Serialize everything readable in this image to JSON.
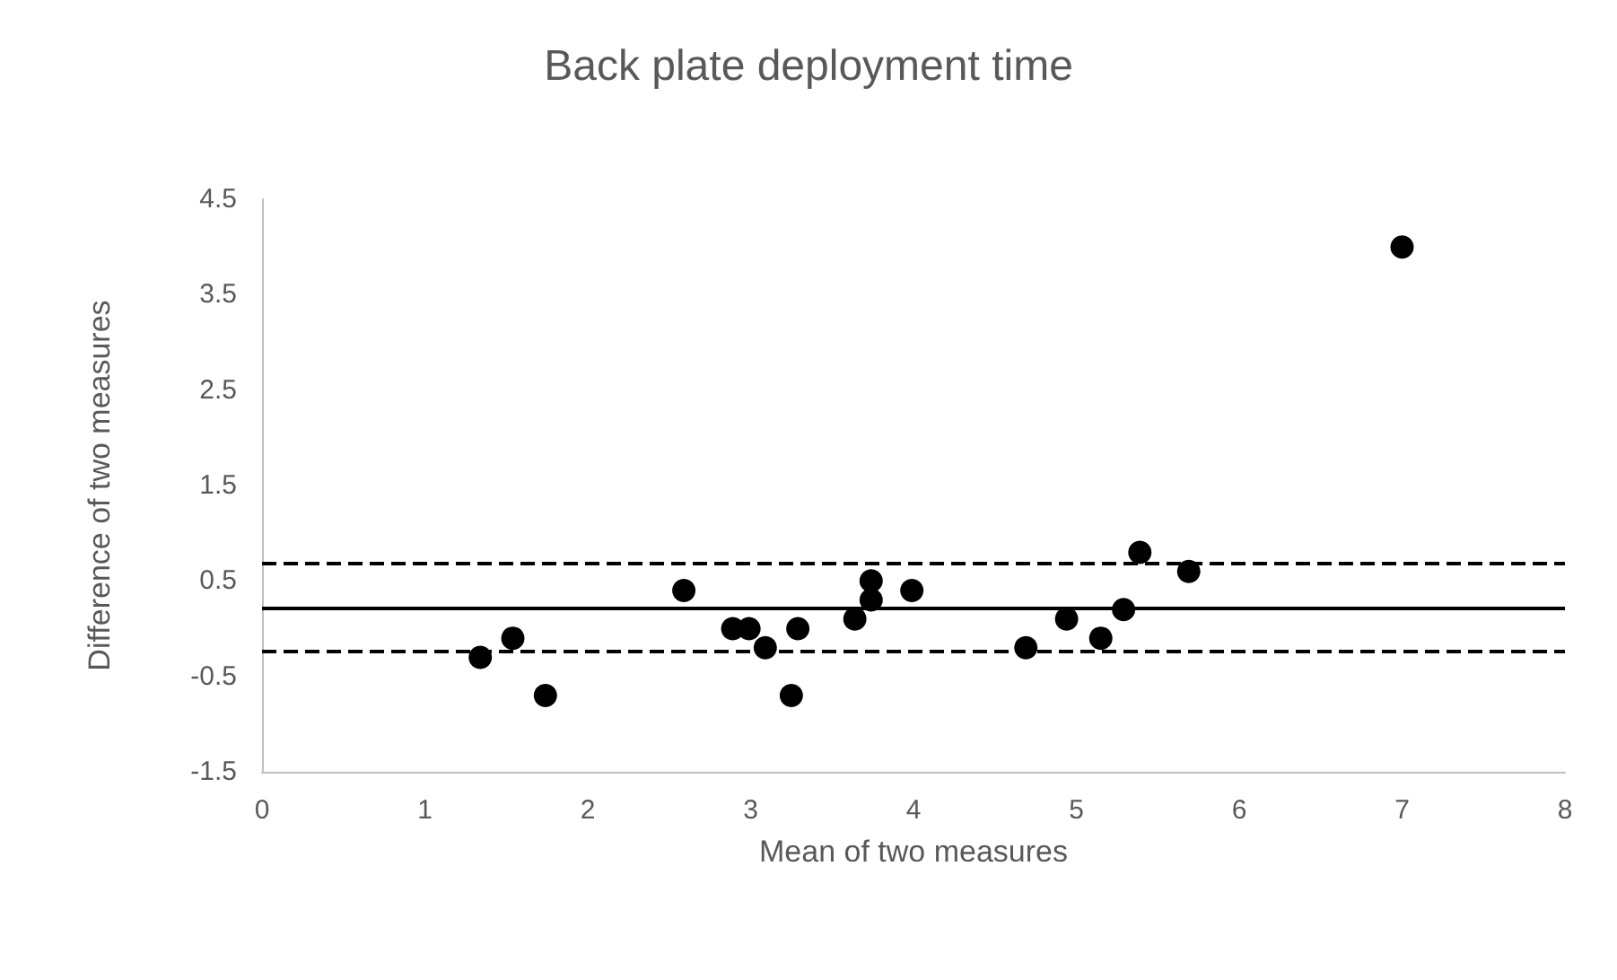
{
  "chart_data": {
    "type": "scatter",
    "title": "Back plate deployment time",
    "xlabel": "Mean of two measures",
    "ylabel": "Difference of two measures",
    "x": [
      1.34,
      1.54,
      1.74,
      2.59,
      2.89,
      2.99,
      3.09,
      3.29,
      3.25,
      3.64,
      3.74,
      3.74,
      3.99,
      4.69,
      4.94,
      5.15,
      5.29,
      5.39,
      5.69,
      7.0
    ],
    "series": [
      {
        "color": "#000000",
        "values": [
          -0.3,
          -0.1,
          -0.7,
          0.4,
          0,
          0,
          -0.2,
          0,
          -0.7,
          0.1,
          0.5,
          0.3,
          0.4,
          -0.2,
          0.1,
          -0.1,
          0.2,
          0.8,
          0.6,
          4.0
        ]
      }
    ],
    "xlim": [
      0,
      8
    ],
    "xticks": [
      0,
      1,
      2,
      3,
      4,
      5,
      6,
      7,
      8
    ],
    "ylim": [
      -1.5,
      4.5
    ],
    "yticks": [
      -1.5,
      -0.5,
      0.5,
      1.5,
      2.5,
      3.5,
      4.5
    ],
    "ref_lines": [
      {
        "axis": "y",
        "value": 0.22,
        "color": "#000000",
        "line_style": "solid"
      },
      {
        "axis": "y",
        "value": 0.68,
        "color": "#000000",
        "line_style": "dashed"
      },
      {
        "axis": "y",
        "value": -0.24,
        "color": "#000000",
        "line_style": "dashed"
      }
    ],
    "marker": "circle",
    "grid": false
  }
}
